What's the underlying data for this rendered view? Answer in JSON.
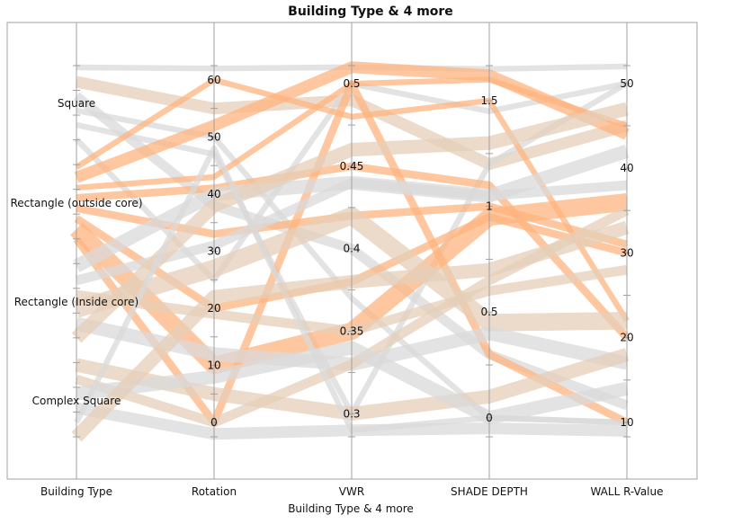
{
  "chart_data": {
    "type": "parallel-coordinates",
    "title": "Building Type & 4 more",
    "xlabel": "Building Type & 4 more",
    "colors": {
      "gray": "#d9d9d9",
      "orange": "#ffb47f",
      "tan": "#e6cfb8",
      "axis": "#a0a0a0"
    },
    "axes": [
      {
        "name": "Building Type",
        "kind": "category",
        "categories": [
          "Square",
          "Rectangle (outside core)",
          "Rectangle (Inside core)",
          "Complex Square"
        ]
      },
      {
        "name": "Rotation",
        "kind": "number",
        "range": [
          -2.5,
          62.5
        ],
        "ticks": [
          "0",
          "10",
          "20",
          "30",
          "40",
          "50",
          "60"
        ],
        "tick_values": [
          0,
          10,
          20,
          30,
          40,
          50,
          60
        ],
        "minor_step": 5
      },
      {
        "name": "VWR",
        "kind": "number",
        "range": [
          0.286,
          0.511
        ],
        "ticks": [
          "0.3",
          "0.35",
          "0.4",
          "0.45",
          "0.5"
        ],
        "tick_values": [
          0.3,
          0.35,
          0.4,
          0.45,
          0.5
        ],
        "minor_step": 0.025
      },
      {
        "name": "SHADE DEPTH",
        "kind": "number",
        "range": [
          -0.09,
          1.666
        ],
        "ticks": [
          "0",
          "0.5",
          "1",
          "1.5"
        ],
        "tick_values": [
          0,
          0.5,
          1,
          1.5
        ],
        "minor_step": 0.25
      },
      {
        "name": "WALL R-Value",
        "kind": "number",
        "range": [
          8.3,
          52.1
        ],
        "ticks": [
          "10",
          "20",
          "30",
          "40",
          "50"
        ],
        "tick_values": [
          10,
          20,
          30,
          40,
          50
        ],
        "minor_step": 5
      }
    ],
    "lines": [
      {
        "values": [
          "Square",
          62,
          0.51,
          1.65,
          52
        ],
        "weight": 2,
        "color": "gray"
      },
      {
        "values": [
          "Square",
          55,
          0.49,
          1.2,
          45
        ],
        "weight": 5,
        "color": "tan"
      },
      {
        "values": [
          "Square",
          38,
          0.4,
          0.3,
          12
        ],
        "weight": 4,
        "color": "gray"
      },
      {
        "values": [
          "Square",
          50,
          0.37,
          0,
          10
        ],
        "weight": 2,
        "color": "gray"
      },
      {
        "values": [
          "Square",
          47,
          0.3,
          1.2,
          50
        ],
        "weight": 2,
        "color": "gray"
      },
      {
        "values": [
          "Square",
          25,
          0.5,
          1.45,
          50
        ],
        "weight": 2,
        "color": "gray"
      },
      {
        "values": [
          "Rectangle (outside core)",
          60,
          0.48,
          1.5,
          22
        ],
        "weight": 2,
        "color": "orange"
      },
      {
        "values": [
          "Rectangle (outside core)",
          52,
          0.51,
          1.62,
          44
        ],
        "weight": 5,
        "color": "orange"
      },
      {
        "values": [
          "Rectangle (outside core)",
          43,
          0.5,
          1.6,
          45
        ],
        "weight": 2,
        "color": "orange"
      },
      {
        "values": [
          "Rectangle (outside core)",
          41,
          0.45,
          1.1,
          20
        ],
        "weight": 3,
        "color": "orange"
      },
      {
        "values": [
          "Rectangle (outside core)",
          33,
          0.42,
          1.0,
          31
        ],
        "weight": 3,
        "color": "orange"
      },
      {
        "values": [
          "Rectangle (outside core)",
          20,
          0.38,
          0.95,
          30
        ],
        "weight": 3,
        "color": "orange"
      },
      {
        "values": [
          "Rectangle (outside core)",
          10,
          0.35,
          0.95,
          36
        ],
        "weight": 8,
        "color": "orange"
      },
      {
        "values": [
          "Rectangle (outside core)",
          0,
          0.5,
          0.3,
          10
        ],
        "weight": 3,
        "color": "orange"
      },
      {
        "values": [
          "Rectangle (Inside core)",
          40,
          0.44,
          1.05,
          42
        ],
        "weight": 6,
        "color": "gray"
      },
      {
        "values": [
          "Rectangle (Inside core)",
          31,
          0.44,
          1.05,
          38
        ],
        "weight": 4,
        "color": "gray"
      },
      {
        "values": [
          "Rectangle (Inside core)",
          19,
          0.35,
          0.6,
          28
        ],
        "weight": 4,
        "color": "tan"
      },
      {
        "values": [
          "Rectangle (Inside core)",
          27,
          0.42,
          0.45,
          22
        ],
        "weight": 8,
        "color": "tan"
      },
      {
        "values": [
          "Rectangle (Inside core)",
          12,
          0.33,
          0.4,
          17
        ],
        "weight": 6,
        "color": "gray"
      },
      {
        "values": [
          "Rectangle (Inside core)",
          38,
          0.46,
          1.3,
          47
        ],
        "weight": 6,
        "color": "tan"
      },
      {
        "values": [
          "Complex Square",
          5,
          0.3,
          0.1,
          18
        ],
        "weight": 6,
        "color": "tan"
      },
      {
        "values": [
          "Complex Square",
          0,
          0.33,
          0.65,
          35
        ],
        "weight": 4,
        "color": "tan"
      },
      {
        "values": [
          "Complex Square",
          8,
          0.34,
          0,
          14
        ],
        "weight": 6,
        "color": "gray"
      },
      {
        "values": [
          "Complex Square",
          -2,
          0.29,
          -0.05,
          9
        ],
        "weight": 5,
        "color": "gray"
      },
      {
        "values": [
          "Complex Square",
          48,
          0.29,
          0.0,
          10
        ],
        "weight": 2,
        "color": "gray"
      },
      {
        "values": [
          "Complex Square",
          22,
          0.38,
          0.7,
          33
        ],
        "weight": 6,
        "color": "tan"
      }
    ]
  }
}
